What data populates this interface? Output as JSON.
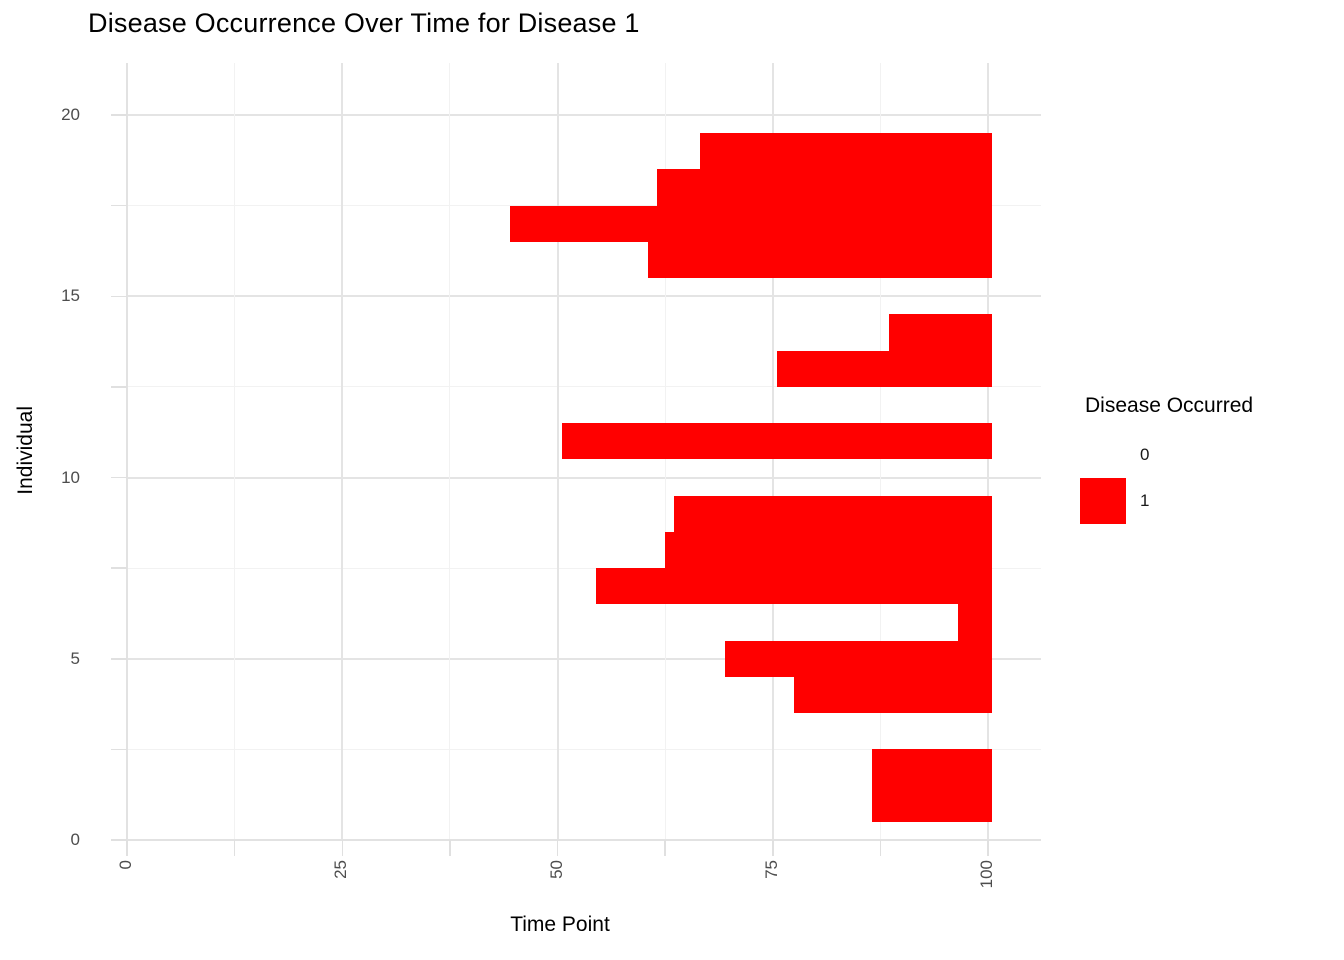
{
  "title": "Disease Occurrence Over Time for Disease 1",
  "axes": {
    "x_title": "Time Point",
    "y_title": "Individual",
    "x_tick_labels": [
      "0",
      "25",
      "50",
      "75",
      "100"
    ],
    "y_tick_labels": [
      "0",
      "5",
      "10",
      "15",
      "20"
    ]
  },
  "legend": {
    "title": "Disease Occurred",
    "items": [
      {
        "label": "0",
        "color": "#ffffff"
      },
      {
        "label": "1",
        "color": "#ff0000"
      }
    ]
  },
  "colors": {
    "bar": "#ff0000",
    "grid_major": "#e4e4e4",
    "grid_minor": "#f2f2f2",
    "tick": "#e0e0e0",
    "tick_text": "#4d4d4d",
    "title_text": "#000000"
  },
  "chart_data": {
    "type": "heatmap",
    "title": "Disease Occurrence Over Time for Disease 1",
    "xlabel": "Time Point",
    "ylabel": "Individual",
    "xlim": [
      0,
      100
    ],
    "ylim": [
      0,
      20
    ],
    "x_major_ticks": [
      0,
      25,
      50,
      75,
      100
    ],
    "x_minor_ticks": [
      12.5,
      37.5,
      62.5,
      87.5
    ],
    "y_major_ticks": [
      0,
      5,
      10,
      15,
      20
    ],
    "y_minor_ticks": [
      2.5,
      7.5,
      12.5,
      17.5
    ],
    "grid": true,
    "legend_position": "right",
    "legend_title": "Disease Occurred",
    "legend_values": [
      "0",
      "1"
    ],
    "tile_value_color": {
      "0": "#ffffff",
      "1": "#ff0000"
    },
    "series": [
      {
        "individual": 1,
        "onset": 87,
        "end": 100
      },
      {
        "individual": 2,
        "onset": 87,
        "end": 100
      },
      {
        "individual": 3,
        "onset": null,
        "end": null
      },
      {
        "individual": 4,
        "onset": 78,
        "end": 100
      },
      {
        "individual": 5,
        "onset": 70,
        "end": 100
      },
      {
        "individual": 6,
        "onset": 97,
        "end": 100
      },
      {
        "individual": 7,
        "onset": 55,
        "end": 100
      },
      {
        "individual": 8,
        "onset": 63,
        "end": 100
      },
      {
        "individual": 9,
        "onset": 64,
        "end": 100
      },
      {
        "individual": 10,
        "onset": null,
        "end": null
      },
      {
        "individual": 11,
        "onset": 51,
        "end": 100
      },
      {
        "individual": 12,
        "onset": null,
        "end": null
      },
      {
        "individual": 13,
        "onset": 76,
        "end": 100
      },
      {
        "individual": 14,
        "onset": 89,
        "end": 100
      },
      {
        "individual": 15,
        "onset": null,
        "end": null
      },
      {
        "individual": 16,
        "onset": 61,
        "end": 100
      },
      {
        "individual": 17,
        "onset": 45,
        "end": 100
      },
      {
        "individual": 18,
        "onset": 62,
        "end": 100
      },
      {
        "individual": 19,
        "onset": 67,
        "end": 100
      },
      {
        "individual": 20,
        "onset": null,
        "end": null
      }
    ]
  }
}
